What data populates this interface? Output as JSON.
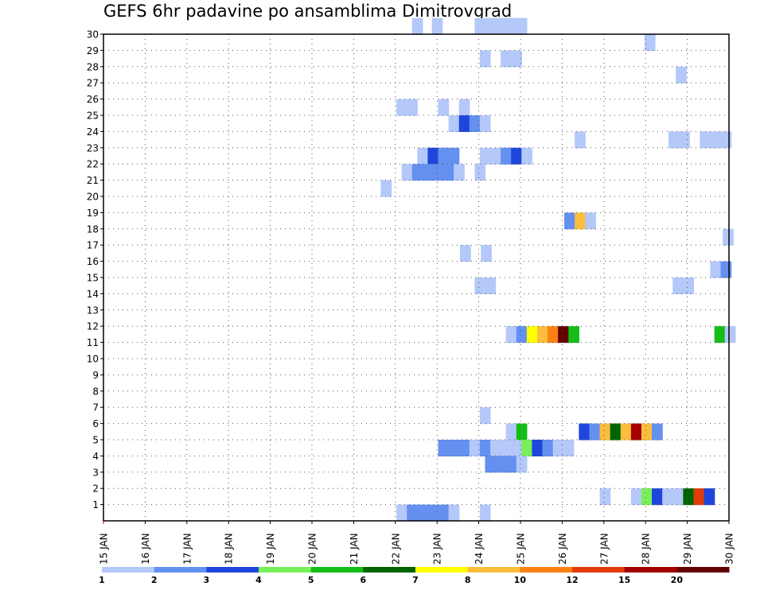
{
  "title": "GEFS 6hr padavine po ansamblima Dimitrovgrad",
  "chart_data": {
    "type": "heatmap",
    "title": "GEFS 6hr padavine po ansamblima Dimitrovgrad",
    "xlabel": "",
    "ylabel": "",
    "x_tick_labels": [
      "15 JAN",
      "16 JAN",
      "17 JAN",
      "18 JAN",
      "19 JAN",
      "20 JAN",
      "21 JAN",
      "22 JAN",
      "23 JAN",
      "24 JAN",
      "25 JAN",
      "26 JAN",
      "27 JAN",
      "28 JAN",
      "29 JAN",
      "30 JAN"
    ],
    "xlim": [
      0,
      60
    ],
    "y_tick_labels": [
      "1",
      "2",
      "3",
      "4",
      "5",
      "6",
      "7",
      "8",
      "9",
      "10",
      "11",
      "12",
      "13",
      "14",
      "15",
      "16",
      "17",
      "18",
      "19",
      "20",
      "21",
      "22",
      "23",
      "24",
      "25",
      "26",
      "27",
      "28",
      "29",
      "30"
    ],
    "ylim": [
      0,
      30
    ],
    "grid": true,
    "colorbar": {
      "labels": [
        "1",
        "2",
        "3",
        "4",
        "5",
        "6",
        "7",
        "8",
        "10",
        "12",
        "15",
        "20"
      ],
      "colors": [
        "#b4c8fa",
        "#6490f0",
        "#1e46dc",
        "#78f05a",
        "#14be14",
        "#006400",
        "#ffff00",
        "#fabe3c",
        "#fa8214",
        "#e13c0a",
        "#a50000",
        "#640000"
      ]
    },
    "cells": [
      [
        29.6,
        30,
        1
      ],
      [
        31.5,
        30,
        1
      ],
      [
        35.6,
        30,
        1
      ],
      [
        36.6,
        30,
        1
      ],
      [
        37.6,
        30,
        1
      ],
      [
        38.6,
        30,
        1
      ],
      [
        39.6,
        30,
        1
      ],
      [
        51.9,
        29,
        1
      ],
      [
        36.1,
        28,
        1
      ],
      [
        38.1,
        28,
        1
      ],
      [
        39.1,
        28,
        1
      ],
      [
        54.9,
        27,
        1
      ],
      [
        28.1,
        25,
        1
      ],
      [
        29.1,
        25,
        1
      ],
      [
        32.1,
        25,
        1
      ],
      [
        34.1,
        25,
        1
      ],
      [
        33.1,
        24,
        1
      ],
      [
        34.1,
        24,
        3
      ],
      [
        35.1,
        24,
        2
      ],
      [
        36.1,
        24,
        1
      ],
      [
        45.2,
        23,
        1
      ],
      [
        54.2,
        23,
        1
      ],
      [
        55.2,
        23,
        1
      ],
      [
        57.2,
        23,
        1
      ],
      [
        58.2,
        23,
        1
      ],
      [
        59.2,
        23,
        1
      ],
      [
        30.1,
        22,
        1
      ],
      [
        31.1,
        22,
        3
      ],
      [
        32.1,
        22,
        2
      ],
      [
        33.1,
        22,
        2
      ],
      [
        36.1,
        22,
        1
      ],
      [
        37.1,
        22,
        1
      ],
      [
        38.1,
        22,
        2
      ],
      [
        39.1,
        22,
        3
      ],
      [
        40.1,
        22,
        1
      ],
      [
        28.6,
        21,
        1
      ],
      [
        29.6,
        21,
        2
      ],
      [
        30.6,
        21,
        2
      ],
      [
        31.6,
        21,
        2
      ],
      [
        32.6,
        21,
        2
      ],
      [
        33.6,
        21,
        1
      ],
      [
        35.6,
        21,
        1
      ],
      [
        26.6,
        20,
        1
      ],
      [
        44.2,
        18,
        2
      ],
      [
        45.2,
        18,
        8
      ],
      [
        46.2,
        18,
        1
      ],
      [
        59.4,
        17,
        1
      ],
      [
        34.2,
        16,
        1
      ],
      [
        36.2,
        16,
        1
      ],
      [
        58.2,
        15,
        1
      ],
      [
        59.2,
        15,
        2
      ],
      [
        35.6,
        14,
        1
      ],
      [
        36.6,
        14,
        1
      ],
      [
        54.6,
        14,
        1
      ],
      [
        55.6,
        14,
        1
      ],
      [
        38.6,
        11,
        1
      ],
      [
        39.6,
        11,
        2
      ],
      [
        40.6,
        11,
        7
      ],
      [
        41.6,
        11,
        8
      ],
      [
        42.6,
        11,
        9
      ],
      [
        43.6,
        11,
        12
      ],
      [
        44.6,
        11,
        5
      ],
      [
        58.6,
        11,
        5
      ],
      [
        59.6,
        11,
        1
      ],
      [
        36.1,
        6,
        1
      ],
      [
        38.6,
        5,
        1
      ],
      [
        39.6,
        5,
        5
      ],
      [
        45.6,
        5,
        3
      ],
      [
        46.6,
        5,
        2
      ],
      [
        47.6,
        5,
        8
      ],
      [
        48.6,
        5,
        6
      ],
      [
        49.6,
        5,
        8
      ],
      [
        50.6,
        5,
        11
      ],
      [
        51.6,
        5,
        8
      ],
      [
        52.6,
        5,
        2
      ],
      [
        32.1,
        4,
        2
      ],
      [
        33.1,
        4,
        2
      ],
      [
        34.1,
        4,
        2
      ],
      [
        35.1,
        4,
        1
      ],
      [
        36.1,
        4,
        2
      ],
      [
        37.1,
        4,
        1
      ],
      [
        38.1,
        4,
        1
      ],
      [
        39.1,
        4,
        1
      ],
      [
        40.1,
        4,
        4
      ],
      [
        41.1,
        4,
        3
      ],
      [
        42.1,
        4,
        2
      ],
      [
        43.1,
        4,
        1
      ],
      [
        44.1,
        4,
        1
      ],
      [
        36.6,
        3,
        2
      ],
      [
        37.6,
        3,
        2
      ],
      [
        38.6,
        3,
        2
      ],
      [
        39.6,
        3,
        1
      ],
      [
        47.6,
        1,
        1
      ],
      [
        50.6,
        1,
        1
      ],
      [
        51.6,
        1,
        4
      ],
      [
        52.6,
        1,
        3
      ],
      [
        53.6,
        1,
        1
      ],
      [
        54.6,
        1,
        1
      ],
      [
        55.6,
        1,
        6
      ],
      [
        56.6,
        1,
        10
      ],
      [
        57.6,
        1,
        3
      ],
      [
        28.1,
        0,
        1
      ],
      [
        29.1,
        0,
        2
      ],
      [
        30.1,
        0,
        2
      ],
      [
        31.1,
        0,
        2
      ],
      [
        32.1,
        0,
        2
      ],
      [
        33.1,
        0,
        1
      ],
      [
        36.1,
        0,
        1
      ]
    ]
  }
}
